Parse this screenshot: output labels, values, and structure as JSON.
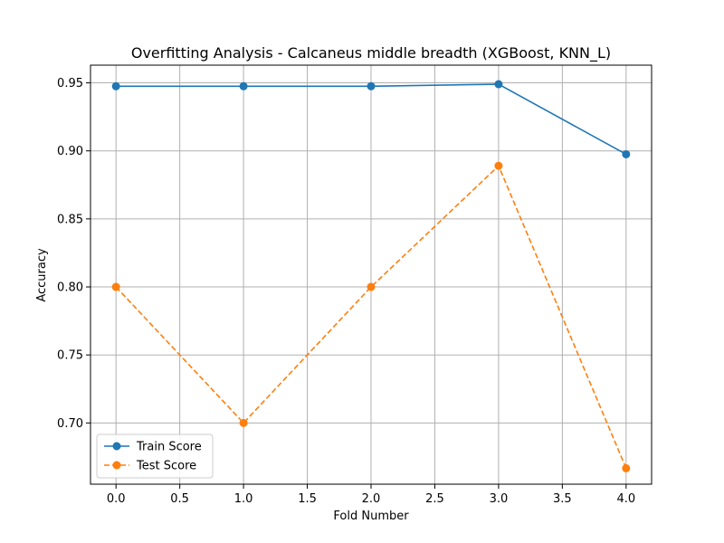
{
  "chart_data": {
    "type": "line",
    "title": "Overfitting Analysis - Calcaneus middle breadth (XGBoost, KNN_L)",
    "xlabel": "Fold Number",
    "ylabel": "Accuracy",
    "xlim": [
      -0.2,
      4.2
    ],
    "ylim": [
      0.655,
      0.963
    ],
    "x_ticks": [
      0.0,
      0.5,
      1.0,
      1.5,
      2.0,
      2.5,
      3.0,
      3.5,
      4.0
    ],
    "x_tick_labels": [
      "0.0",
      "0.5",
      "1.0",
      "1.5",
      "2.0",
      "2.5",
      "3.0",
      "3.5",
      "4.0"
    ],
    "y_ticks": [
      0.7,
      0.75,
      0.8,
      0.85,
      0.9,
      0.95
    ],
    "y_tick_labels": [
      "0.70",
      "0.75",
      "0.80",
      "0.85",
      "0.90",
      "0.95"
    ],
    "grid": true,
    "legend_position": "lower-left",
    "x": [
      0,
      1,
      2,
      3,
      4
    ],
    "series": [
      {
        "name": "Train Score",
        "values": [
          0.9475,
          0.9475,
          0.9475,
          0.949,
          0.8975
        ],
        "color": "#1f77b4",
        "style": "solid"
      },
      {
        "name": "Test Score",
        "values": [
          0.8,
          0.7,
          0.8,
          0.889,
          0.6667
        ],
        "color": "#ff7f0e",
        "style": "dashed"
      }
    ]
  }
}
